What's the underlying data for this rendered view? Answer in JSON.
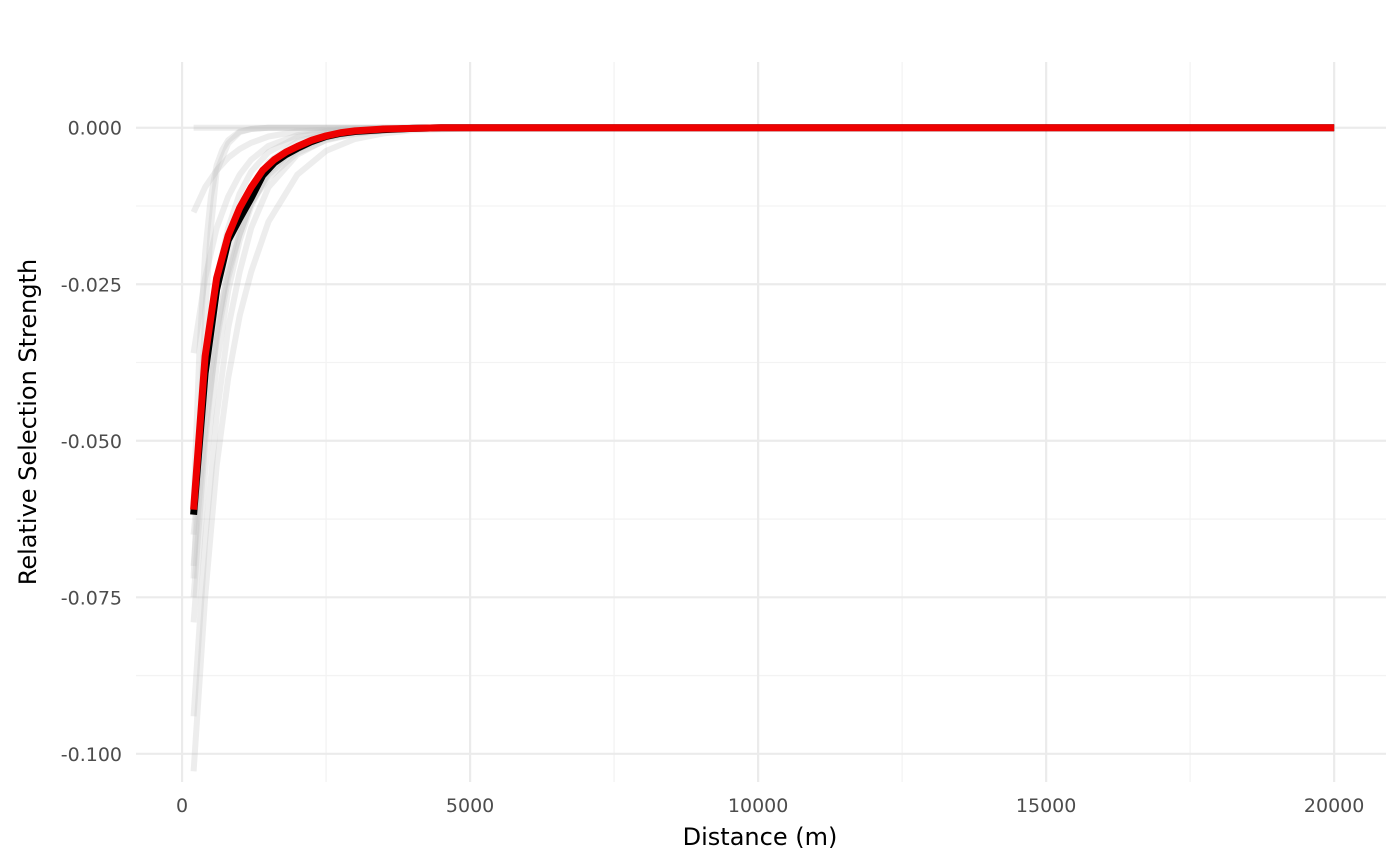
{
  "chart_data": {
    "type": "line",
    "title": "",
    "xlabel": "Distance (m)",
    "ylabel": "Relative Selection Strength",
    "xlim": [
      -800,
      20900
    ],
    "ylim": [
      -0.1045,
      0.0105
    ],
    "x_ticks": [
      0,
      5000,
      10000,
      15000,
      20000
    ],
    "x_tick_labels": [
      "0",
      "5000",
      "10000",
      "15000",
      "20000"
    ],
    "y_ticks": [
      0.0,
      -0.025,
      -0.05,
      -0.075,
      -0.1
    ],
    "y_tick_labels": [
      "0.000",
      "-0.025",
      "-0.050",
      "-0.075",
      "-0.100"
    ],
    "grid": true,
    "legend": "none",
    "colors": {
      "background": "#ffffff",
      "grid_major": "#ebebeb",
      "grid_minor": "#f3f3f3",
      "individual": "#bfbfbf",
      "mean": "#000000",
      "fitted": "#ee0000"
    },
    "individual_series": [
      {
        "x": [
          200,
          400,
          600,
          800,
          1000,
          1200,
          1500,
          2000,
          2500,
          3000,
          3500,
          4000,
          5000,
          20000
        ],
        "y": [
          -0.1028,
          -0.075,
          -0.054,
          -0.04,
          -0.03,
          -0.023,
          -0.015,
          -0.0075,
          -0.0037,
          -0.0018,
          -0.0009,
          -0.0004,
          -0.0001,
          0.0
        ]
      },
      {
        "x": [
          200,
          400,
          600,
          800,
          1000,
          1200,
          1500,
          2000,
          2500,
          3000,
          3500,
          4000,
          5000,
          20000
        ],
        "y": [
          -0.094,
          -0.066,
          -0.046,
          -0.032,
          -0.023,
          -0.016,
          -0.0095,
          -0.0043,
          -0.0019,
          -0.0009,
          -0.0004,
          -0.0002,
          0.0,
          0.0
        ]
      },
      {
        "x": [
          200,
          400,
          600,
          800,
          1000,
          1200,
          1500,
          2000,
          2500,
          3000,
          3500,
          4000,
          5000,
          20000
        ],
        "y": [
          -0.079,
          -0.055,
          -0.038,
          -0.026,
          -0.018,
          -0.0125,
          -0.007,
          -0.003,
          -0.0013,
          -0.0005,
          -0.0002,
          -0.0001,
          0.0,
          0.0
        ]
      },
      {
        "x": [
          200,
          400,
          600,
          800,
          1000,
          1200,
          1500,
          2000,
          2500,
          3000,
          3500,
          4000,
          5000,
          20000
        ],
        "y": [
          -0.075,
          -0.05,
          -0.033,
          -0.022,
          -0.015,
          -0.01,
          -0.0055,
          -0.0022,
          -0.0009,
          -0.0004,
          -0.0001,
          0.0,
          0.0,
          0.0
        ]
      },
      {
        "x": [
          200,
          400,
          600,
          800,
          1000,
          1200,
          1500,
          2000,
          2500,
          3000,
          3500,
          4000,
          5000,
          20000
        ],
        "y": [
          -0.07,
          -0.048,
          -0.034,
          -0.024,
          -0.017,
          -0.012,
          -0.0075,
          -0.0035,
          -0.0016,
          -0.0007,
          -0.0003,
          -0.0001,
          0.0,
          0.0
        ]
      },
      {
        "x": [
          200,
          400,
          600,
          800,
          1000,
          1200,
          1500,
          2000,
          2500,
          3000,
          3500,
          4000,
          5000,
          20000
        ],
        "y": [
          -0.065,
          -0.045,
          -0.032,
          -0.023,
          -0.017,
          -0.012,
          -0.008,
          -0.004,
          -0.002,
          -0.001,
          -0.0005,
          -0.0002,
          0.0,
          0.0
        ]
      },
      {
        "x": [
          200,
          400,
          600,
          800,
          1000,
          1200,
          1500,
          2000,
          2500,
          3000,
          3500,
          4000,
          5000,
          20000
        ],
        "y": [
          -0.06,
          -0.038,
          -0.024,
          -0.016,
          -0.0105,
          -0.007,
          -0.0039,
          -0.0015,
          -0.0006,
          -0.0002,
          -0.0001,
          0.0,
          0.0,
          0.0
        ]
      },
      {
        "x": [
          200,
          400,
          600,
          800,
          1000,
          1200,
          1500,
          2000,
          2500,
          3000,
          3500,
          4000,
          5000,
          20000
        ],
        "y": [
          -0.036,
          -0.024,
          -0.016,
          -0.011,
          -0.0075,
          -0.0051,
          -0.0029,
          -0.0012,
          -0.0005,
          -0.0002,
          -0.0001,
          0.0,
          0.0,
          0.0
        ]
      },
      {
        "x": [
          200,
          300,
          400,
          500,
          600,
          800,
          1000,
          1200,
          1500,
          2000,
          2500,
          3000,
          20000
        ],
        "y": [
          -0.072,
          -0.05,
          -0.03,
          -0.016,
          -0.007,
          -0.0025,
          -0.0007,
          -0.0002,
          0.0,
          0.0,
          0.0,
          0.0,
          0.0
        ]
      },
      {
        "x": [
          200,
          300,
          400,
          500,
          600,
          700,
          800,
          1000,
          1200,
          1500,
          2000,
          20000
        ],
        "y": [
          -0.06,
          -0.036,
          -0.02,
          -0.011,
          -0.006,
          -0.0035,
          -0.002,
          -0.0006,
          -0.0002,
          0.0,
          0.0,
          0.0
        ]
      },
      {
        "x": [
          200,
          400,
          600,
          800,
          1000,
          1200,
          1500,
          2000,
          2500,
          3000,
          3500,
          4000,
          5000,
          20000
        ],
        "y": [
          -0.0135,
          -0.0095,
          -0.0068,
          -0.0048,
          -0.0034,
          -0.0024,
          -0.0014,
          -0.0006,
          -0.0003,
          -0.0001,
          0.0,
          0.0,
          0.0,
          0.0
        ]
      },
      {
        "x": [
          200,
          20000
        ],
        "y": [
          0.0,
          0.0
        ]
      }
    ],
    "series": [
      {
        "x": [
          200,
          400,
          600,
          800,
          1000,
          1200,
          1400,
          1600,
          1800,
          2000,
          2250,
          2500,
          2750,
          3000,
          3500,
          4000,
          4500,
          5000,
          6000,
          8000,
          10000,
          15000,
          20000
        ],
        "y": [
          -0.0618,
          -0.0392,
          -0.0258,
          -0.018,
          -0.0145,
          -0.0112,
          -0.0076,
          -0.0056,
          -0.0043,
          -0.0033,
          -0.0022,
          -0.0014,
          -0.0009,
          -0.0006,
          -0.0003,
          -0.0001,
          0.0,
          0.0,
          0.0,
          0.0,
          0.0,
          0.0,
          0.0
        ]
      },
      {
        "x": [
          200,
          400,
          600,
          800,
          1000,
          1200,
          1400,
          1600,
          1800,
          2000,
          2250,
          2500,
          2750,
          3000,
          3500,
          4000,
          4500,
          5000,
          6000,
          8000,
          10000,
          15000,
          20000
        ],
        "y": [
          -0.061,
          -0.0365,
          -0.024,
          -0.0172,
          -0.0128,
          -0.0095,
          -0.0068,
          -0.0051,
          -0.0039,
          -0.003,
          -0.002,
          -0.0013,
          -0.0008,
          -0.0005,
          -0.0002,
          -0.0001,
          0.0,
          0.0,
          0.0,
          0.0,
          0.0,
          0.0,
          0.0
        ]
      }
    ]
  }
}
